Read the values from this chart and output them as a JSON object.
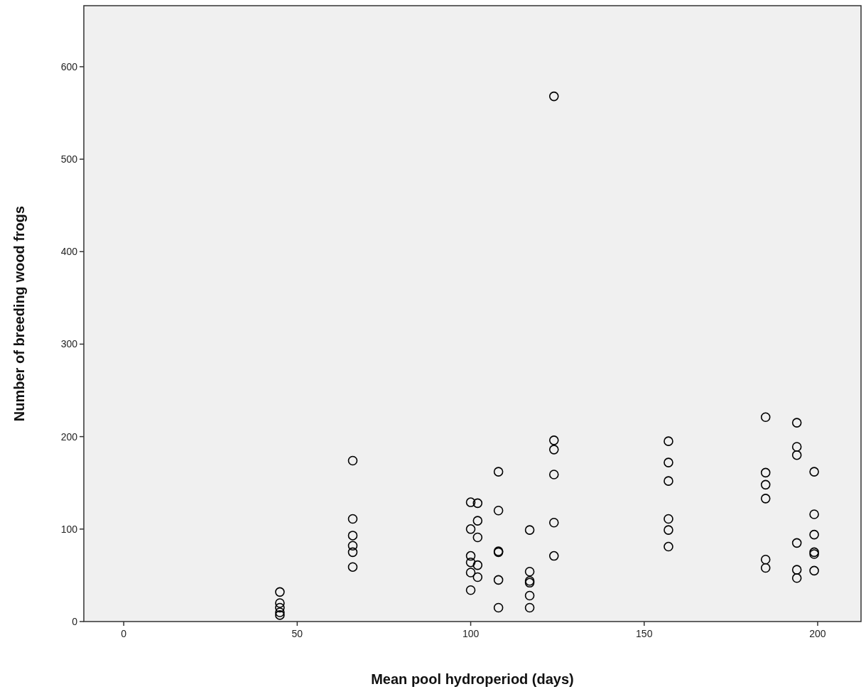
{
  "chart_data": {
    "type": "scatter",
    "xlabel": "Mean pool hydroperiod (days)",
    "ylabel": "Number of breeding wood frogs",
    "xlim": [
      -11.5,
      212.5
    ],
    "ylim": [
      0,
      666
    ],
    "xticks": [
      0,
      50,
      100,
      150,
      200
    ],
    "yticks": [
      0,
      100,
      200,
      300,
      400,
      500,
      600
    ],
    "grid": false,
    "marker": "circle",
    "series": [
      {
        "color": "#000000",
        "x": [
          45,
          45,
          45,
          45,
          45,
          66,
          66,
          66,
          66,
          66,
          66,
          100,
          100,
          100,
          100,
          100,
          100,
          102,
          102,
          102,
          102,
          102,
          108,
          108,
          108,
          108,
          108,
          108,
          117,
          117,
          117,
          117,
          117,
          117,
          124,
          124,
          124,
          124,
          124,
          124,
          157,
          157,
          157,
          157,
          157,
          157,
          185,
          185,
          185,
          185,
          185,
          185,
          194,
          194,
          194,
          194,
          194,
          194,
          199,
          199,
          199,
          199,
          199,
          199
        ],
        "values": [
          32,
          20,
          15,
          10,
          7,
          174,
          111,
          93,
          82,
          75,
          59,
          129,
          100,
          71,
          64,
          53,
          34,
          128,
          109,
          91,
          61,
          48,
          162,
          120,
          76,
          75,
          45,
          15,
          99,
          54,
          44,
          42,
          28,
          15,
          568,
          196,
          186,
          159,
          107,
          71,
          195,
          172,
          152,
          111,
          99,
          81,
          221,
          161,
          148,
          133,
          67,
          58,
          215,
          189,
          180,
          85,
          56,
          47,
          162,
          116,
          94,
          75,
          73,
          55
        ]
      }
    ]
  }
}
